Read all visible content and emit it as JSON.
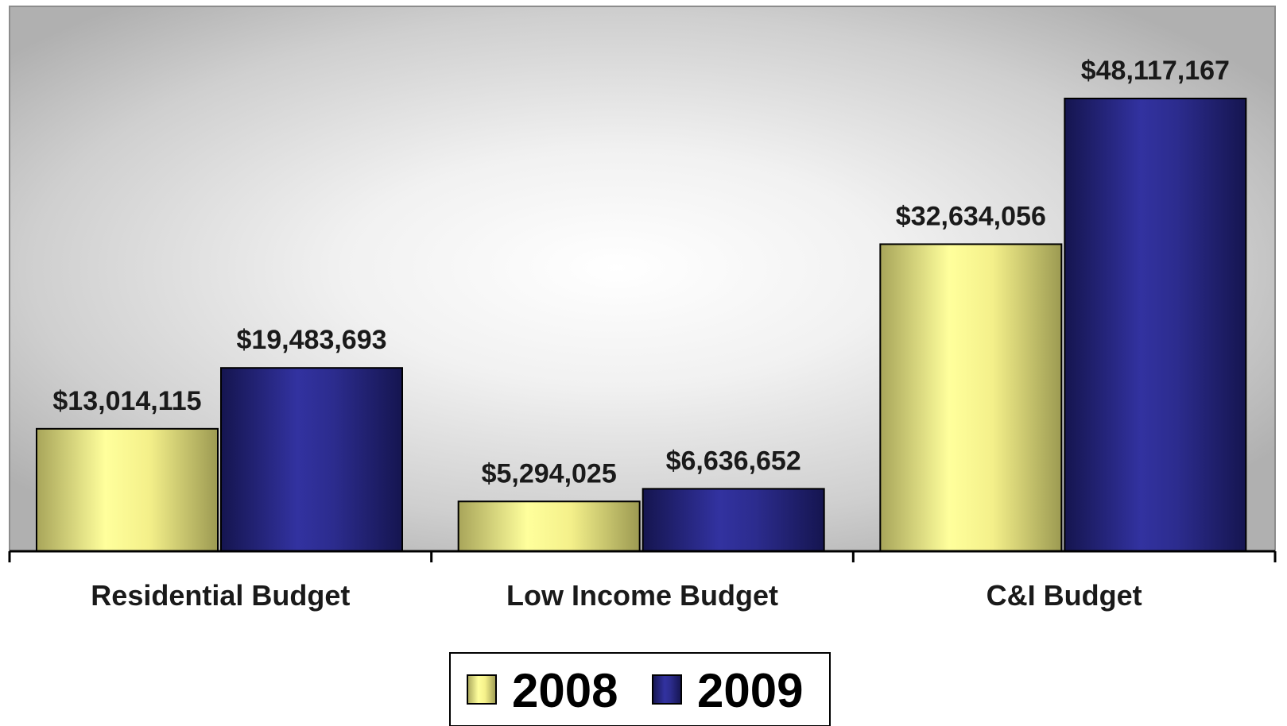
{
  "chart_data": {
    "type": "bar",
    "categories": [
      "Residential Budget",
      "Low Income Budget",
      "C&I Budget"
    ],
    "series": [
      {
        "name": "2008",
        "values": [
          13014115,
          5294025,
          32634056
        ],
        "labels": [
          "$13,014,115",
          "$5,294,025",
          "$32,634,056"
        ],
        "color": "#f4f08a"
      },
      {
        "name": "2009",
        "values": [
          19483693,
          6636652,
          48117167
        ],
        "labels": [
          "$19,483,693",
          "$6,636,652",
          "$48,117,167"
        ],
        "color": "#2e2e8c"
      }
    ],
    "ylim": [
      0,
      60000000
    ],
    "grid": false,
    "legend": "bottom-center",
    "colors": {
      "plot_area_edge": "#b3b3b3",
      "plot_area_center": "#ffffff"
    }
  }
}
